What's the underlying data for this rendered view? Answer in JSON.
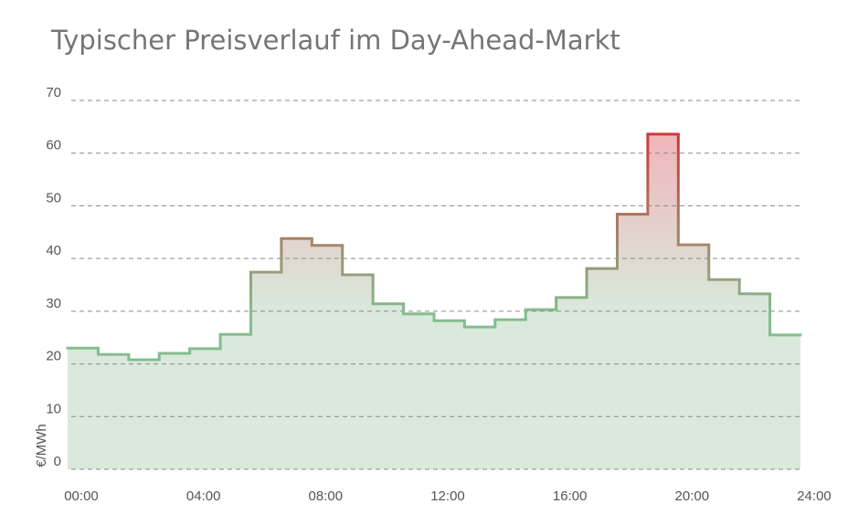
{
  "chart_data": {
    "type": "step",
    "title": "Typischer Preisverlauf im Day-Ahead-Markt",
    "y_label": "€/MWh",
    "x": [
      0,
      1,
      2,
      3,
      4,
      5,
      6,
      7,
      8,
      9,
      10,
      11,
      12,
      13,
      14,
      15,
      16,
      17,
      18,
      19,
      20,
      21,
      22,
      23
    ],
    "values": [
      23.0,
      21.8,
      20.8,
      22.0,
      22.9,
      25.6,
      37.4,
      43.8,
      42.5,
      36.9,
      31.4,
      29.5,
      28.2,
      27.0,
      28.4,
      30.3,
      32.6,
      38.1,
      48.4,
      63.6,
      42.6,
      36.0,
      33.3,
      25.5
    ],
    "xlim": [
      0,
      24
    ],
    "xticks": [
      {
        "value": 0,
        "label": "00:00"
      },
      {
        "value": 4,
        "label": "04:00"
      },
      {
        "value": 8,
        "label": "08:00"
      },
      {
        "value": 12,
        "label": "12:00"
      },
      {
        "value": 16,
        "label": "16:00"
      },
      {
        "value": 20,
        "label": "20:00"
      },
      {
        "value": 24,
        "label": "24:00"
      }
    ],
    "ylim": [
      0,
      70
    ],
    "yticks": [
      0,
      10,
      20,
      30,
      40,
      50,
      60,
      70
    ],
    "grid": true,
    "low_color": "#84bd8e",
    "high_color": "#cc3a3a",
    "low_fill": "#d9e9dc",
    "high_fill": "#f0b7bb"
  }
}
